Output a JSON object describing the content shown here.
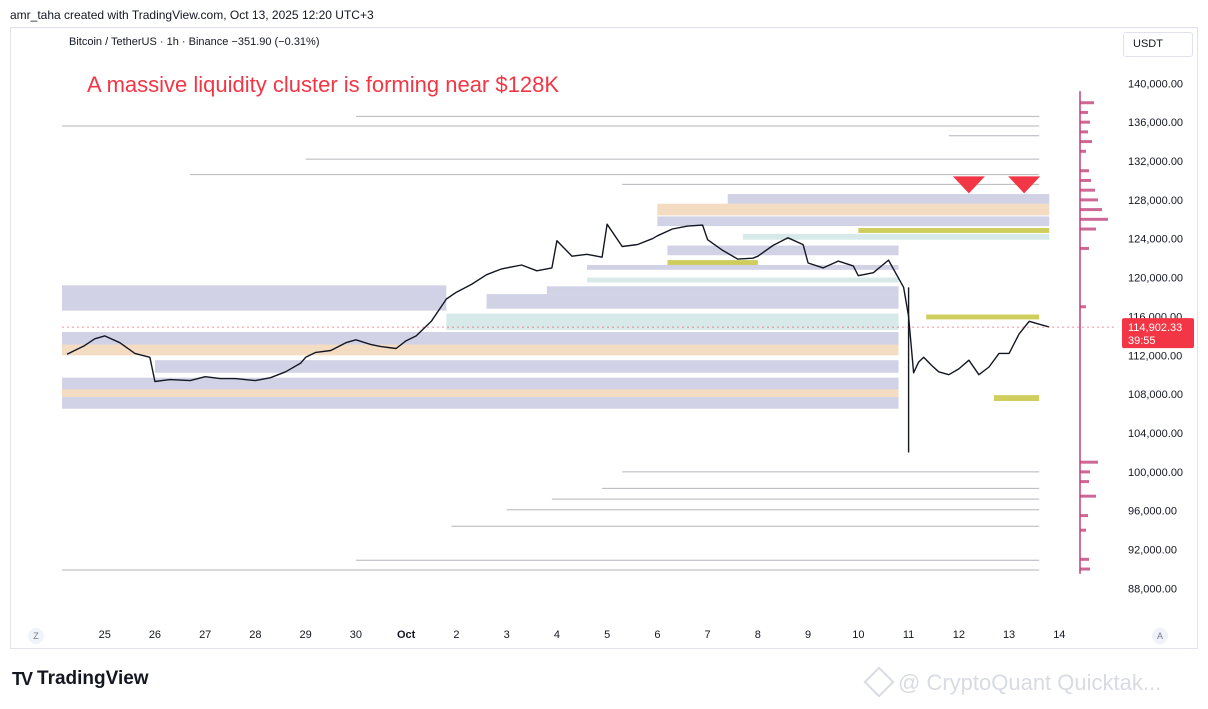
{
  "header": {
    "created_by": "amr_taha created with TradingView.com, Oct 13, 2025 12:20 UTC+3"
  },
  "symbol_line": "Bitcoin / TetherUS · 1h · Binance  −351.90 (−0.31%)",
  "annotation": "A massive liquidity cluster is forming near $128K",
  "currency": "USDT",
  "nav": {
    "left": "Z",
    "right": "A"
  },
  "branding": {
    "logo": "TradingView",
    "watermark": "@ CryptoQuant Quicktak..."
  },
  "colors": {
    "candles": "#131722",
    "price_tag": "#f23645",
    "annotation": "#f23645",
    "liquidity_purple": "#7b7fb8",
    "liquidity_orange": "#e09a4f",
    "liquidity_yellow": "#c7c53f",
    "liquidity_teal": "#8fc1c4",
    "profile_bar": "#c2417a"
  },
  "chart_data": {
    "type": "line",
    "title": "Bitcoin / TetherUS · 1h · Binance",
    "y_axis": {
      "ticks": [
        140000,
        136000,
        132000,
        128000,
        124000,
        120000,
        116000,
        112000,
        108000,
        104000,
        100000,
        96000,
        92000,
        88000
      ],
      "tick_labels": [
        "140,000.00",
        "136,000.00",
        "132,000.00",
        "128,000.00",
        "124,000.00",
        "120,000.00",
        "116,000.00",
        "112,000.00",
        "108,000.00",
        "104,000.00",
        "100,000.00",
        "96,000.00",
        "92,000.00",
        "88,000.00"
      ],
      "ylim": [
        86400,
        142400
      ]
    },
    "x_axis": {
      "labels": [
        "25",
        "26",
        "27",
        "28",
        "29",
        "30",
        "Oct",
        "2",
        "3",
        "4",
        "5",
        "6",
        "7",
        "8",
        "9",
        "10",
        "11",
        "12",
        "13",
        "14"
      ],
      "positions": [
        0,
        1,
        2,
        3,
        4,
        5,
        6,
        7,
        8,
        9,
        10,
        11,
        12,
        13,
        14,
        15,
        16,
        17,
        18,
        19
      ],
      "xlim": [
        -0.85,
        19.75
      ]
    },
    "last_price": {
      "value": 114902.33,
      "label": "114,902.33",
      "countdown": "39:55"
    },
    "series": [
      {
        "x": [
          -0.75,
          -0.4,
          -0.2,
          0,
          0.3,
          0.6,
          0.9,
          1.0,
          1.3,
          1.7,
          2.0,
          2.3,
          2.6,
          3.0,
          3.3,
          3.6,
          3.9,
          4.0,
          4.2,
          4.5,
          4.8,
          5.0,
          5.3,
          5.5,
          5.8,
          6.0,
          6.2,
          6.5,
          6.8,
          7.0,
          7.3,
          7.6,
          7.9,
          8.0,
          8.3,
          8.6,
          8.9,
          9.0,
          9.3,
          9.6,
          9.9,
          10.0,
          10.3,
          10.6,
          10.9,
          11.0,
          11.3,
          11.6,
          11.9,
          12.0,
          12.3,
          12.6,
          12.9,
          13.0,
          13.3,
          13.6,
          13.9,
          14.0,
          14.3,
          14.6,
          14.9,
          15.0,
          15.3,
          15.6,
          15.9,
          16.0,
          16.1,
          16.2,
          16.3,
          16.45,
          16.6,
          16.8,
          17.0,
          17.2,
          17.4,
          17.6,
          17.8,
          18.0,
          18.2,
          18.4,
          18.6,
          18.8
        ],
        "y": [
          112100,
          113000,
          113700,
          114000,
          113300,
          112200,
          111800,
          109300,
          109500,
          109400,
          109800,
          109600,
          109600,
          109400,
          109700,
          110300,
          111200,
          111800,
          112300,
          112500,
          113300,
          113600,
          113100,
          112900,
          112700,
          113500,
          114000,
          115500,
          117800,
          118500,
          119300,
          120300,
          120900,
          121000,
          121300,
          120700,
          121000,
          123800,
          122200,
          122400,
          122100,
          125500,
          123200,
          123400,
          124000,
          124300,
          125000,
          125300,
          125400,
          123900,
          122800,
          121900,
          122000,
          122200,
          123300,
          124100,
          123400,
          121500,
          121000,
          121700,
          121200,
          120200,
          120500,
          121800,
          119000,
          116000,
          110200,
          111300,
          111800,
          111000,
          110300,
          110000,
          110600,
          111500,
          110000,
          110800,
          112200,
          112200,
          114200,
          115500,
          115200,
          114900
        ]
      }
    ]
  },
  "liquidity_bands": [
    {
      "y1": 127600,
      "y2": 128600,
      "x1": 12.4,
      "x2": 18.8,
      "color": "purple"
    },
    {
      "y1": 126400,
      "y2": 127600,
      "x1": 11.0,
      "x2": 18.8,
      "color": "orange"
    },
    {
      "y1": 125300,
      "y2": 126300,
      "x1": 11.0,
      "x2": 18.8,
      "color": "purple"
    },
    {
      "y1": 124600,
      "y2": 125100,
      "x1": 15.0,
      "x2": 18.8,
      "color": "yellow"
    },
    {
      "y1": 123900,
      "y2": 124500,
      "x1": 12.7,
      "x2": 18.8,
      "color": "teal"
    },
    {
      "y1": 122300,
      "y2": 123300,
      "x1": 11.2,
      "x2": 15.8,
      "color": "purple"
    },
    {
      "y1": 121300,
      "y2": 121800,
      "x1": 11.2,
      "x2": 13.0,
      "color": "yellow"
    },
    {
      "y1": 120800,
      "y2": 121300,
      "x1": 9.6,
      "x2": 15.8,
      "color": "purple"
    },
    {
      "y1": 119500,
      "y2": 120000,
      "x1": 9.6,
      "x2": 15.8,
      "color": "teal"
    },
    {
      "y1": 118300,
      "y2": 119100,
      "x1": 8.8,
      "x2": 15.8,
      "color": "purple"
    },
    {
      "y1": 116800,
      "y2": 118300,
      "x1": 7.6,
      "x2": 15.8,
      "color": "purple"
    },
    {
      "y1": 114600,
      "y2": 116300,
      "x1": 6.8,
      "x2": 15.8,
      "color": "teal"
    },
    {
      "y1": 115700,
      "y2": 116200,
      "x1": 16.35,
      "x2": 18.6,
      "color": "yellow"
    },
    {
      "y1": 113100,
      "y2": 114400,
      "x1": -0.85,
      "x2": 15.8,
      "color": "purple"
    },
    {
      "y1": 112000,
      "y2": 113100,
      "x1": -0.85,
      "x2": 15.8,
      "color": "orange"
    },
    {
      "y1": 110200,
      "y2": 111500,
      "x1": 1.0,
      "x2": 15.8,
      "color": "purple"
    },
    {
      "y1": 108500,
      "y2": 109700,
      "x1": -0.85,
      "x2": 15.8,
      "color": "purple"
    },
    {
      "y1": 107700,
      "y2": 108500,
      "x1": -0.85,
      "x2": 15.8,
      "color": "orange"
    },
    {
      "y1": 106500,
      "y2": 107700,
      "x1": -0.85,
      "x2": 15.8,
      "color": "purple"
    },
    {
      "y1": 107300,
      "y2": 107900,
      "x1": 17.7,
      "x2": 18.6,
      "color": "yellow"
    },
    {
      "y1": 116600,
      "y2": 119200,
      "x1": -0.85,
      "x2": 6.8,
      "color": "purple"
    }
  ],
  "liquidity_lines": [
    {
      "y": 136600,
      "x1": 5.0,
      "x2": 18.6
    },
    {
      "y": 135600,
      "x1": -0.85,
      "x2": 18.6
    },
    {
      "y": 134600,
      "x1": 16.8,
      "x2": 18.6
    },
    {
      "y": 132200,
      "x1": 4.0,
      "x2": 18.6
    },
    {
      "y": 130600,
      "x1": 1.7,
      "x2": 18.6
    },
    {
      "y": 129600,
      "x1": 10.3,
      "x2": 18.6
    },
    {
      "y": 100000,
      "x1": 10.3,
      "x2": 18.6
    },
    {
      "y": 98300,
      "x1": 9.9,
      "x2": 18.6
    },
    {
      "y": 97200,
      "x1": 8.9,
      "x2": 18.6
    },
    {
      "y": 96100,
      "x1": 8.0,
      "x2": 18.6
    },
    {
      "y": 94400,
      "x1": 6.9,
      "x2": 18.6
    },
    {
      "y": 90900,
      "x1": 5.0,
      "x2": 18.6
    },
    {
      "y": 89900,
      "x1": -0.85,
      "x2": 18.6
    }
  ],
  "markers": [
    {
      "x": 17.2,
      "y": 129600
    },
    {
      "x": 18.3,
      "y": 129600
    }
  ],
  "profile_bars": [
    {
      "y": 138000,
      "len": 14
    },
    {
      "y": 137000,
      "len": 8
    },
    {
      "y": 136000,
      "len": 10
    },
    {
      "y": 135000,
      "len": 8
    },
    {
      "y": 134000,
      "len": 12
    },
    {
      "y": 133000,
      "len": 6
    },
    {
      "y": 131000,
      "len": 9
    },
    {
      "y": 130000,
      "len": 11
    },
    {
      "y": 129000,
      "len": 15
    },
    {
      "y": 128000,
      "len": 18
    },
    {
      "y": 127000,
      "len": 22
    },
    {
      "y": 126000,
      "len": 28
    },
    {
      "y": 125000,
      "len": 16
    },
    {
      "y": 123000,
      "len": 9
    },
    {
      "y": 117000,
      "len": 6
    },
    {
      "y": 101000,
      "len": 18
    },
    {
      "y": 100000,
      "len": 10
    },
    {
      "y": 99000,
      "len": 9
    },
    {
      "y": 97500,
      "len": 16
    },
    {
      "y": 95500,
      "len": 8
    },
    {
      "y": 94000,
      "len": 6
    },
    {
      "y": 91000,
      "len": 9
    },
    {
      "y": 90000,
      "len": 10
    }
  ]
}
